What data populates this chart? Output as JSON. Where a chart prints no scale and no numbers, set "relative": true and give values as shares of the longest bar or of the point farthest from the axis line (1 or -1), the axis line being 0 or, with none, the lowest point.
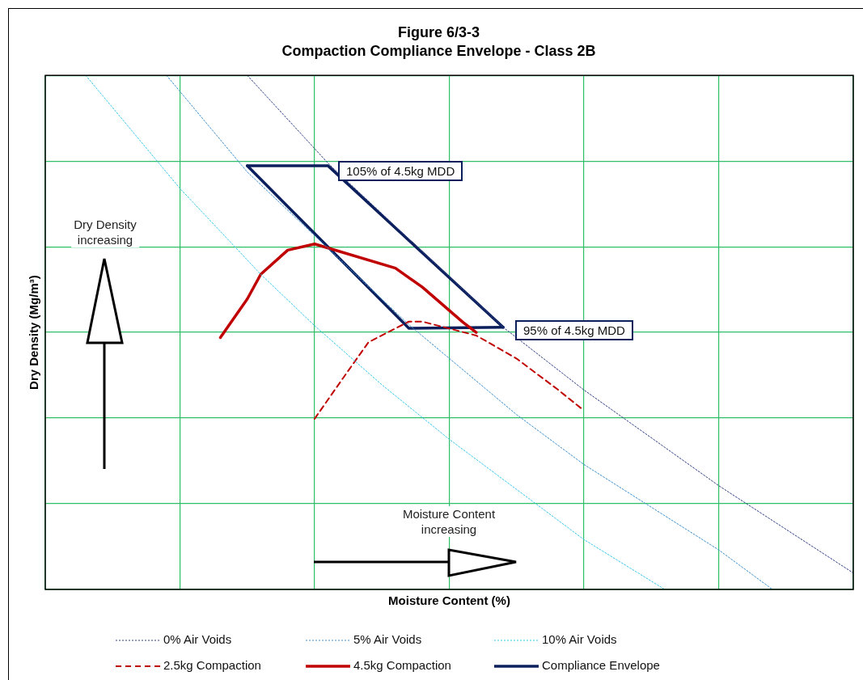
{
  "chart_data": {
    "type": "line",
    "title": "Figure 6/3-3",
    "subtitle": "Compaction Compliance Envelope - Class 2B",
    "xlabel": "Moisture Content (%)",
    "ylabel": "Dry Density (Mg/m³)",
    "relative": true,
    "categories": [
      null,
      null,
      null,
      null,
      null,
      null,
      null,
      null,
      null,
      null,
      null,
      null,
      null,
      null,
      null,
      null,
      null,
      null,
      null,
      null,
      null,
      null,
      null,
      null,
      null,
      null,
      null,
      null,
      null,
      null,
      null,
      null,
      null,
      null,
      null,
      null,
      null,
      null,
      null,
      null,
      null,
      null,
      null,
      null,
      null,
      null,
      null,
      null,
      null,
      null,
      null,
      null,
      null,
      null,
      null,
      null,
      null,
      null,
      null,
      null,
      null
    ],
    "grid": true,
    "legend": "bottom",
    "marker": "none",
    "series": [
      {
        "name": "0% Air Voids",
        "color": "#2e3f86",
        "line_style": "dotted",
        "values": [
          null,
          null,
          null,
          null,
          null,
          null,
          null,
          null,
          null,
          null,
          null,
          null,
          null,
          null,
          null,
          1,
          null,
          null,
          null,
          null,
          null,
          0.829,
          null,
          null,
          null,
          null,
          null,
          null,
          null,
          null,
          null,
          null,
          null,
          null,
          0.51,
          null,
          null,
          null,
          null,
          null,
          0.388,
          null,
          null,
          null,
          null,
          null,
          null,
          null,
          null,
          null,
          0.202,
          null,
          null,
          null,
          null,
          null,
          null,
          null,
          null,
          null,
          0.032
        ]
      },
      {
        "name": "5% Air Voids",
        "color": "#3a8fd0",
        "line_style": "dotted",
        "values": [
          null,
          null,
          null,
          null,
          null,
          null,
          null,
          null,
          null,
          1,
          null,
          null,
          null,
          null,
          null,
          0.812,
          null,
          null,
          null,
          null,
          null,
          null,
          null,
          null,
          null,
          null,
          null,
          0.515,
          null,
          null,
          null,
          null,
          null,
          null,
          null,
          0.34,
          null,
          null,
          null,
          null,
          0.243,
          null,
          null,
          null,
          null,
          null,
          null,
          null,
          null,
          null,
          0.077,
          null,
          null,
          null,
          0,
          null,
          null,
          null,
          null,
          null,
          null
        ]
      },
      {
        "name": "10% Air Voids",
        "color": "#38c8f0",
        "line_style": "dotted",
        "values": [
          null,
          null,
          null,
          1,
          null,
          null,
          null,
          null,
          null,
          null,
          0.78,
          null,
          null,
          null,
          null,
          null,
          0.613,
          null,
          null,
          null,
          0.513,
          null,
          null,
          null,
          null,
          0.398,
          null,
          null,
          null,
          null,
          0.292,
          null,
          null,
          null,
          null,
          null,
          null,
          null,
          null,
          null,
          0.097,
          null,
          null,
          null,
          null,
          null,
          0,
          null,
          null,
          null,
          null,
          null,
          null,
          null,
          null,
          null,
          null,
          null,
          null,
          null,
          null
        ]
      },
      {
        "name": "2.5kg Compaction",
        "color": "#c00000",
        "line_style": "dashed",
        "values": [
          null,
          null,
          null,
          null,
          null,
          null,
          null,
          null,
          null,
          null,
          null,
          null,
          null,
          null,
          null,
          null,
          null,
          null,
          null,
          null,
          0.332,
          null,
          0.407,
          null,
          0.481,
          null,
          null,
          0.521,
          0.521,
          null,
          null,
          null,
          0.494,
          null,
          null,
          0.449,
          null,
          null,
          0.39,
          null,
          0.348,
          null,
          null,
          null,
          null,
          null,
          null,
          null,
          null,
          null,
          null,
          null,
          null,
          null,
          null,
          null,
          null,
          null,
          null,
          null,
          null
        ]
      },
      {
        "name": "4.5kg Compaction",
        "color": "#c00000",
        "line_style": "solid",
        "values": [
          null,
          null,
          null,
          null,
          null,
          null,
          null,
          null,
          null,
          null,
          null,
          null,
          null,
          0.49,
          null,
          0.565,
          0.613,
          null,
          0.66,
          null,
          0.672,
          null,
          null,
          null,
          null,
          null,
          0.625,
          null,
          0.588,
          null,
          null,
          0.52,
          0.5,
          null,
          null,
          null,
          null,
          null,
          null,
          null,
          null,
          null,
          null,
          null,
          null,
          null,
          null,
          null,
          null,
          null,
          null,
          null,
          null,
          null,
          null,
          null,
          null,
          null,
          null,
          null,
          null
        ]
      },
      {
        "name": "Compliance Envelope",
        "color": "#0b1f5c",
        "line_style": "solid",
        "values": [
          null,
          null,
          null,
          null,
          null,
          null,
          null,
          null,
          null,
          null,
          null,
          null,
          null,
          null,
          null,
          0.824,
          null,
          null,
          null,
          null,
          null,
          0.824,
          null,
          null,
          null,
          null,
          null,
          null,
          null,
          null,
          null,
          null,
          null,
          null,
          0.51,
          null,
          null,
          null,
          null,
          null,
          null,
          null,
          null,
          null,
          null,
          null,
          null,
          null,
          null,
          null,
          null,
          null,
          null,
          null,
          null,
          null,
          null,
          null,
          null,
          null,
          null
        ]
      },
      {
        "color": "#0b1f5c",
        "line_style": "solid",
        "values": [
          null,
          null,
          null,
          null,
          null,
          null,
          null,
          null,
          null,
          null,
          null,
          null,
          null,
          null,
          null,
          0.824,
          null,
          null,
          null,
          null,
          null,
          null,
          null,
          null,
          null,
          null,
          null,
          0.508,
          null,
          null,
          null,
          null,
          null,
          null,
          0.51,
          null,
          null,
          null,
          null,
          null,
          null,
          null,
          null,
          null,
          null,
          null,
          null,
          null,
          null,
          null,
          null,
          null,
          null,
          null,
          null,
          null,
          null,
          null,
          null,
          null,
          null
        ]
      }
    ],
    "annotations": [
      "105% of 4.5kg MDD",
      "95% of 4.5kg MDD",
      "Dry Density\nincreasing",
      "Moisture Content\nincreasing"
    ]
  }
}
